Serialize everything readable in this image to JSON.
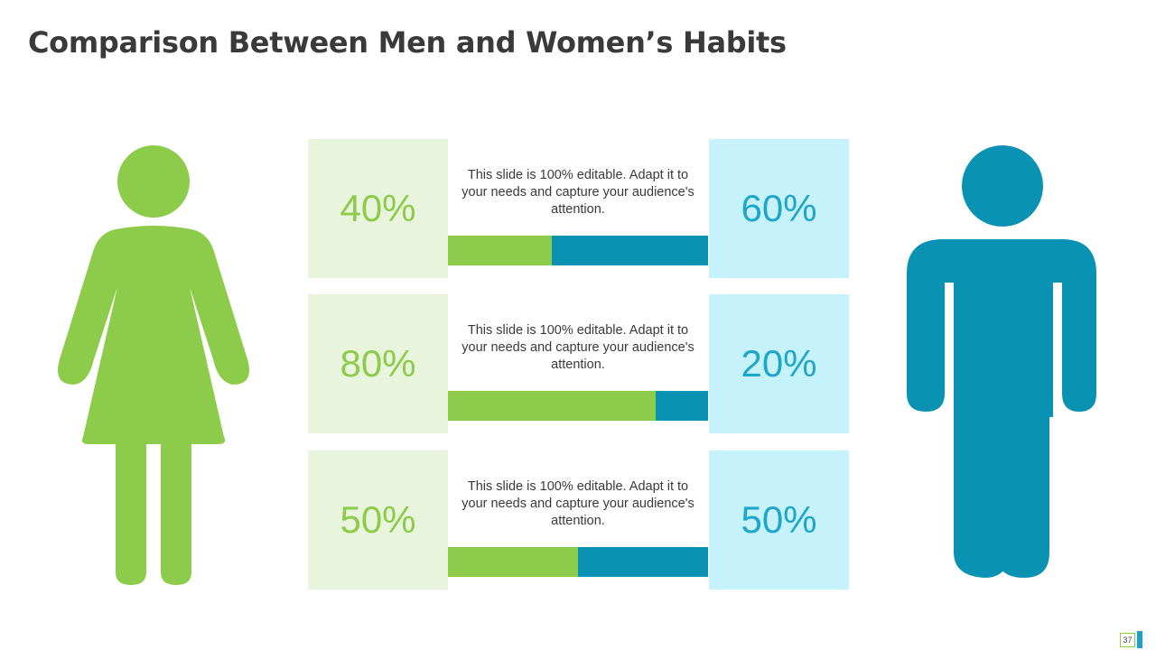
{
  "slide": {
    "title": "Comparison Between Men and Women’s Habits",
    "page_number": "37"
  },
  "colors": {
    "women": "#8dcb4a",
    "men": "#0a92b3",
    "women_box": "#e8f5dc",
    "men_box": "#c5f2fb",
    "men_text": "#1fa6c8"
  },
  "icons": {
    "left": "woman-icon",
    "right": "man-icon"
  },
  "rows": [
    {
      "women_label": "40%",
      "men_label": "60%",
      "women_share": 40,
      "men_share": 60,
      "description": "This slide is 100% editable. Adapt it to your needs and capture your audience's attention."
    },
    {
      "women_label": "80%",
      "men_label": "20%",
      "women_share": 80,
      "men_share": 20,
      "description": "This slide is 100% editable. Adapt it to your needs and capture your audience's attention."
    },
    {
      "women_label": "50%",
      "men_label": "50%",
      "women_share": 50,
      "men_share": 50,
      "description": "This slide is 100% editable. Adapt it to your needs and capture your audience's attention."
    }
  ]
}
